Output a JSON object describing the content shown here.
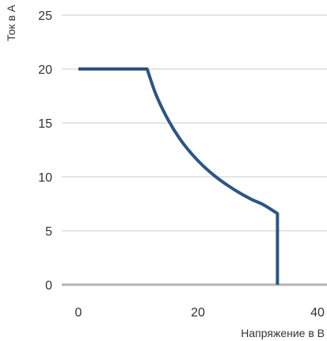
{
  "chart_data": {
    "type": "line",
    "xlabel": "Напряжение в В",
    "ylabel": "Ток в А",
    "xlim": [
      0,
      40
    ],
    "ylim": [
      0,
      25
    ],
    "x_ticks": [
      "0",
      "20",
      "40"
    ],
    "y_ticks": [
      "0",
      "5",
      "10",
      "15",
      "20",
      "25"
    ],
    "grid": true,
    "series": [
      {
        "color": "#2d5583",
        "x": [
          0,
          11.5,
          13,
          15,
          17,
          19,
          21,
          23,
          25,
          27,
          29,
          31,
          33.3,
          33.3
        ],
        "y": [
          20,
          20,
          17.6,
          15.3,
          13.5,
          12.1,
          10.95,
          10.0,
          9.2,
          8.5,
          7.9,
          7.4,
          6.6,
          0
        ]
      }
    ]
  }
}
